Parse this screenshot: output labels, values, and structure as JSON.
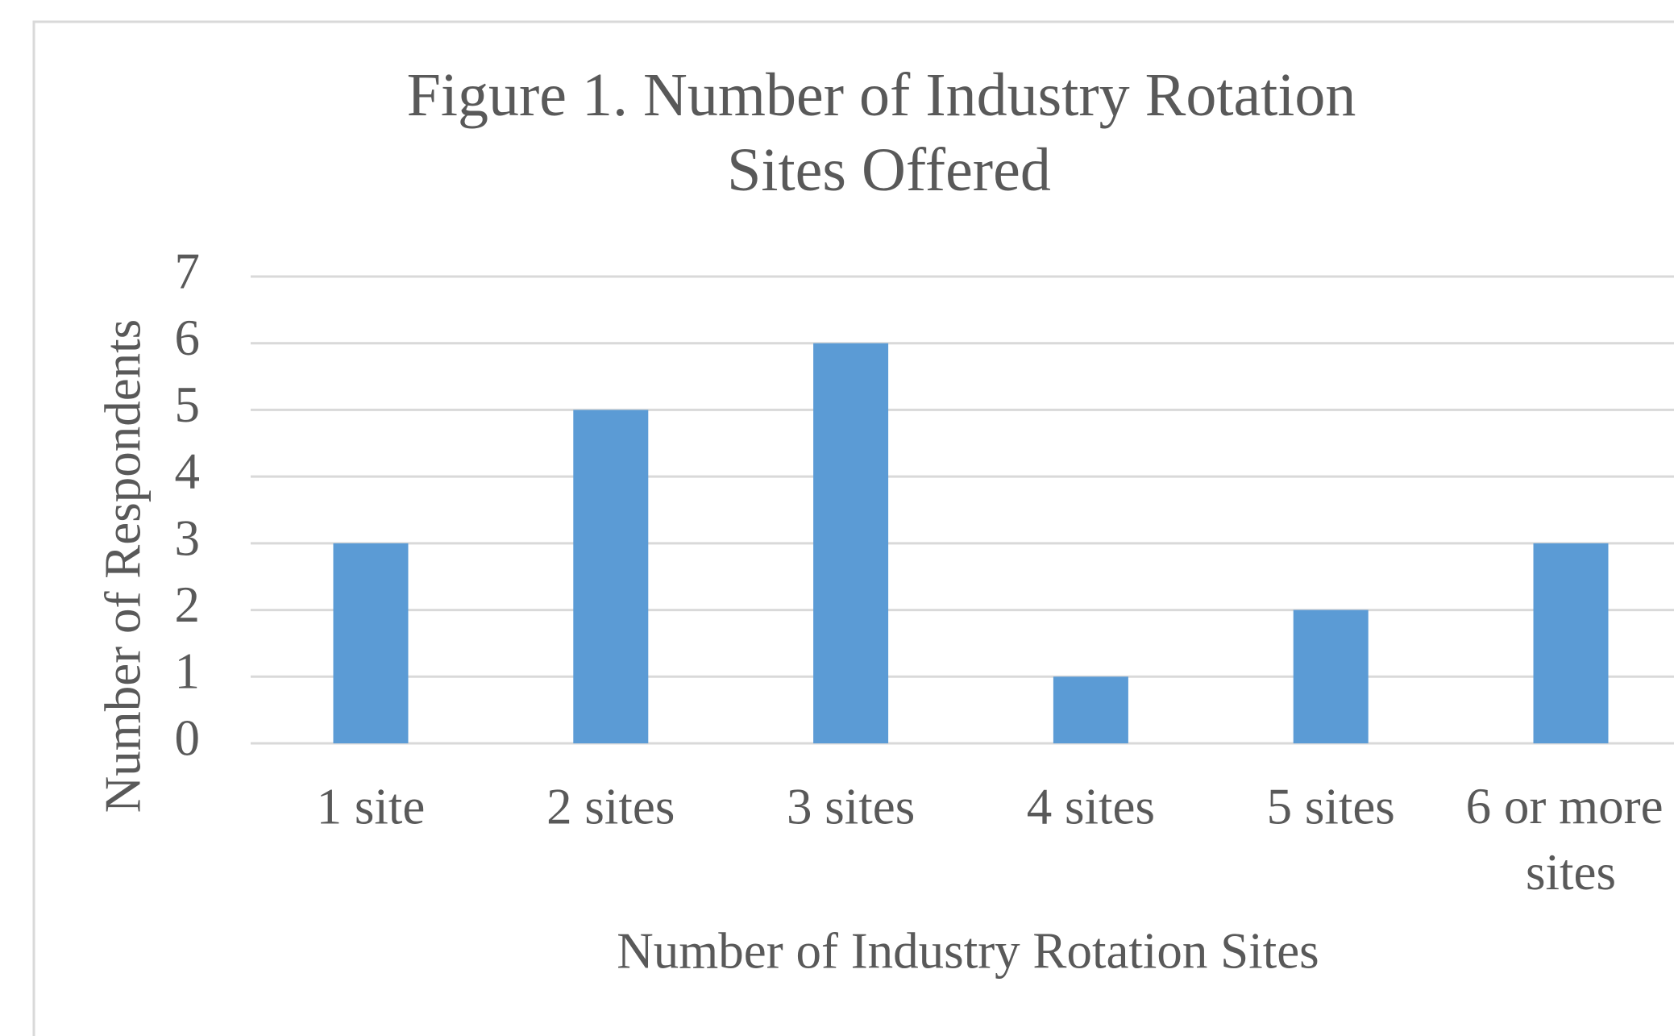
{
  "chart_data": {
    "type": "bar",
    "title": "Figure 1. Number of Industry Rotation Sites Offered",
    "x_label": "Number of Industry Rotation Sites",
    "y_label": "Number of Respondents",
    "categories": [
      "1 site",
      "2 sites",
      "3 sites",
      "4 sites",
      "5 sites",
      "6 or more sites"
    ],
    "values": [
      3,
      5,
      6,
      1,
      2,
      3
    ],
    "color": "#5b9bd5",
    "ylim": [
      0,
      7
    ],
    "yticks": [
      0,
      1,
      2,
      3,
      4,
      5,
      6,
      7
    ],
    "grid": true
  }
}
